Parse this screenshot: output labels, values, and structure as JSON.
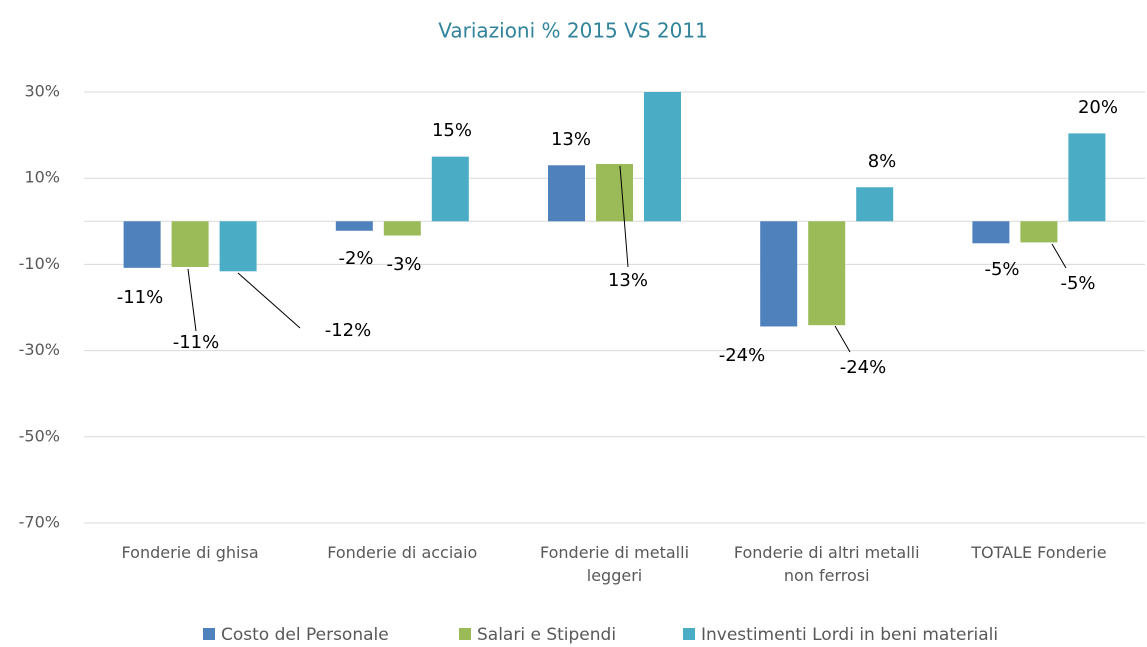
{
  "chart_data": {
    "type": "bar",
    "title": "Variazioni % 2015 VS 2011",
    "categories": [
      "Fonderie di ghisa",
      "Fonderie di acciaio",
      "Fonderie di metalli leggeri",
      "Fonderie di altri metalli non ferrosi",
      "TOTALE Fonderie"
    ],
    "series": [
      {
        "name": "Costo del Personale",
        "color": "#4f81bd",
        "values": [
          -10.8,
          -2.2,
          13,
          -24.4,
          -5.1
        ],
        "value_labels": [
          "-11%",
          "-2%",
          "13%",
          "-24%",
          "-5%"
        ]
      },
      {
        "name": "Salari e Stipendi",
        "color": "#9bbb59",
        "values": [
          -10.6,
          -3.3,
          13.3,
          -24.1,
          -4.9
        ],
        "value_labels": [
          "-11%",
          "-3%",
          "13%",
          "-24%",
          "-5%"
        ]
      },
      {
        "name": "Investimenti Lordi in beni materiali",
        "color": "#4bacc6",
        "values": [
          -11.6,
          15,
          30,
          7.9,
          20.4
        ],
        "value_labels": [
          "-12%",
          "15%",
          null,
          "8%",
          "20%"
        ]
      }
    ],
    "ylim": [
      -70,
      30
    ],
    "yticks": [
      {
        "value": 30,
        "label": "30%"
      },
      {
        "value": 10,
        "label": "10%"
      },
      {
        "value": -10,
        "label": "-10%"
      },
      {
        "value": -30,
        "label": "-30%"
      },
      {
        "value": -50,
        "label": "-50%"
      },
      {
        "value": -70,
        "label": "-70%"
      }
    ],
    "grid": true,
    "legend": "bottom"
  }
}
